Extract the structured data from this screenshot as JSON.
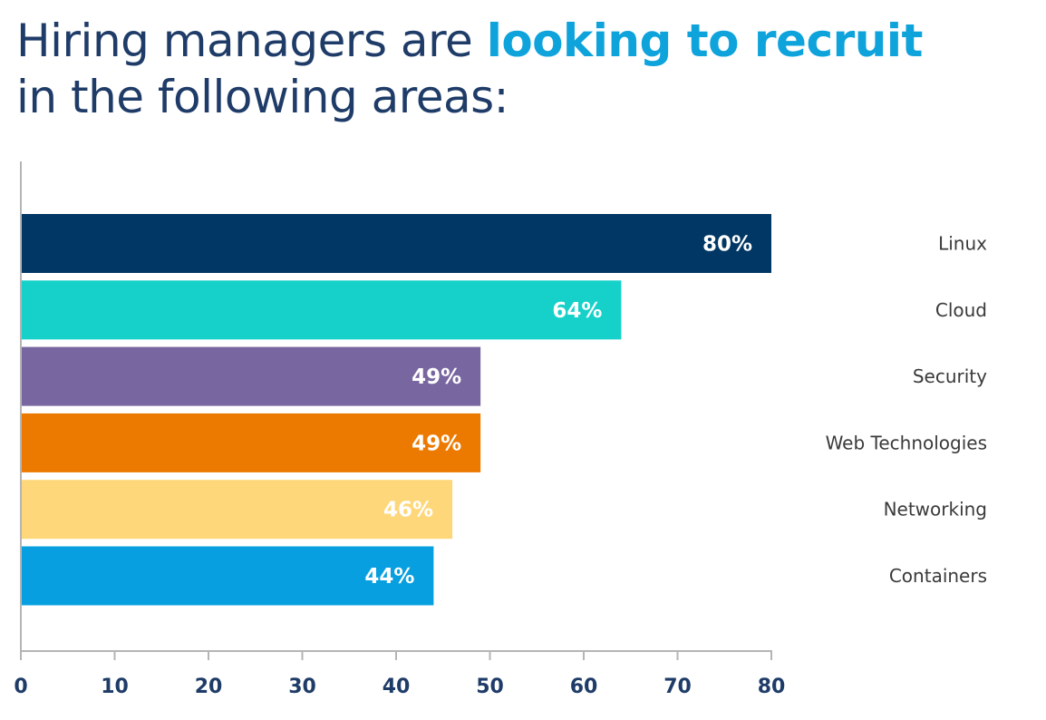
{
  "title": {
    "part1": "Hiring managers are ",
    "highlight": "looking to recruit",
    "part2": "in the following areas:"
  },
  "chart_data": {
    "type": "bar",
    "orientation": "horizontal",
    "categories": [
      "Linux",
      "Cloud",
      "Security",
      "Web Technologies",
      "Networking",
      "Containers"
    ],
    "values": [
      80,
      64,
      49,
      49,
      46,
      44
    ],
    "value_labels": [
      "80%",
      "64%",
      "49%",
      "49%",
      "46%",
      "44%"
    ],
    "colors": [
      "#003764",
      "#16d1c9",
      "#7866a0",
      "#ec7a00",
      "#fed77a",
      "#079fdf"
    ],
    "xlim": [
      0,
      80
    ],
    "xticks": [
      0,
      10,
      20,
      30,
      40,
      50,
      60,
      70,
      80
    ],
    "grid": false,
    "axis_color": "#b5b5b5"
  }
}
